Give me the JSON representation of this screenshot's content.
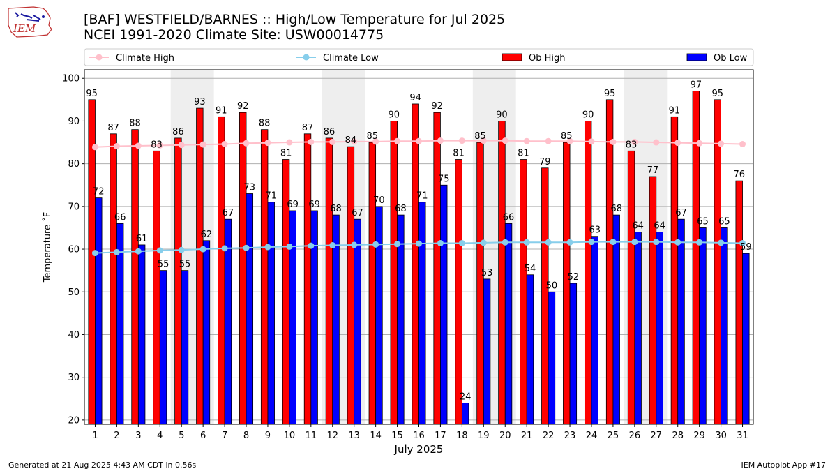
{
  "header": {
    "title_line1": "[BAF] WESTFIELD/BARNES :: High/Low Temperature for Jul 2025",
    "title_line2": "NCEI 1991-2020 Climate Site: USW00014775",
    "logo_text": "IEM"
  },
  "footer": {
    "generated": "Generated at 21 Aug 2025 4:43 AM CDT in 0.56s",
    "app": "IEM Autoplot App #17"
  },
  "colors": {
    "ob_high": "#ff0000",
    "ob_low": "#0000ff",
    "climate_high": "#ffc0cb",
    "climate_low": "#87ceeb",
    "weekend_band": "#eeeeee",
    "grid": "#b0b0b0"
  },
  "chart_data": {
    "type": "bar",
    "xlabel": "July 2025",
    "ylabel": "Temperature ˚F",
    "ylim": [
      19,
      102
    ],
    "yticks": [
      20,
      30,
      40,
      50,
      60,
      70,
      80,
      90,
      100
    ],
    "grid": "horizontal",
    "legend_position": "top",
    "categories": [
      "1",
      "2",
      "3",
      "4",
      "5",
      "6",
      "7",
      "8",
      "9",
      "10",
      "11",
      "12",
      "13",
      "14",
      "15",
      "16",
      "17",
      "18",
      "19",
      "20",
      "21",
      "22",
      "23",
      "24",
      "25",
      "26",
      "27",
      "28",
      "29",
      "30",
      "31"
    ],
    "shaded_day_ranges": [
      [
        5,
        6
      ],
      [
        12,
        13
      ],
      [
        19,
        20
      ],
      [
        26,
        27
      ]
    ],
    "series": [
      {
        "name": "Ob High",
        "kind": "bar",
        "values": [
          95,
          87,
          88,
          83,
          86,
          93,
          91,
          92,
          88,
          81,
          87,
          86,
          84,
          85,
          90,
          94,
          92,
          81,
          85,
          90,
          81,
          79,
          85,
          90,
          95,
          83,
          77,
          91,
          97,
          95,
          76
        ]
      },
      {
        "name": "Ob Low",
        "kind": "bar",
        "values": [
          72,
          66,
          61,
          55,
          55,
          62,
          67,
          73,
          71,
          69,
          69,
          68,
          67,
          70,
          68,
          71,
          75,
          24,
          53,
          66,
          54,
          50,
          52,
          63,
          68,
          64,
          64,
          67,
          65,
          65,
          59
        ]
      },
      {
        "name": "Climate High",
        "kind": "line",
        "values": [
          83.9,
          84.1,
          84.2,
          84.3,
          84.4,
          84.5,
          84.6,
          84.8,
          84.9,
          85.0,
          85.1,
          85.1,
          85.2,
          85.2,
          85.3,
          85.3,
          85.4,
          85.4,
          85.4,
          85.4,
          85.3,
          85.3,
          85.3,
          85.2,
          85.1,
          85.1,
          85.0,
          84.9,
          84.8,
          84.7,
          84.6
        ]
      },
      {
        "name": "Climate Low",
        "kind": "line",
        "values": [
          59.1,
          59.3,
          59.5,
          59.7,
          59.8,
          60.0,
          60.2,
          60.3,
          60.5,
          60.6,
          60.8,
          60.9,
          61.0,
          61.1,
          61.2,
          61.3,
          61.4,
          61.4,
          61.5,
          61.6,
          61.6,
          61.6,
          61.6,
          61.7,
          61.7,
          61.7,
          61.7,
          61.6,
          61.6,
          61.5,
          61.4
        ]
      }
    ]
  }
}
